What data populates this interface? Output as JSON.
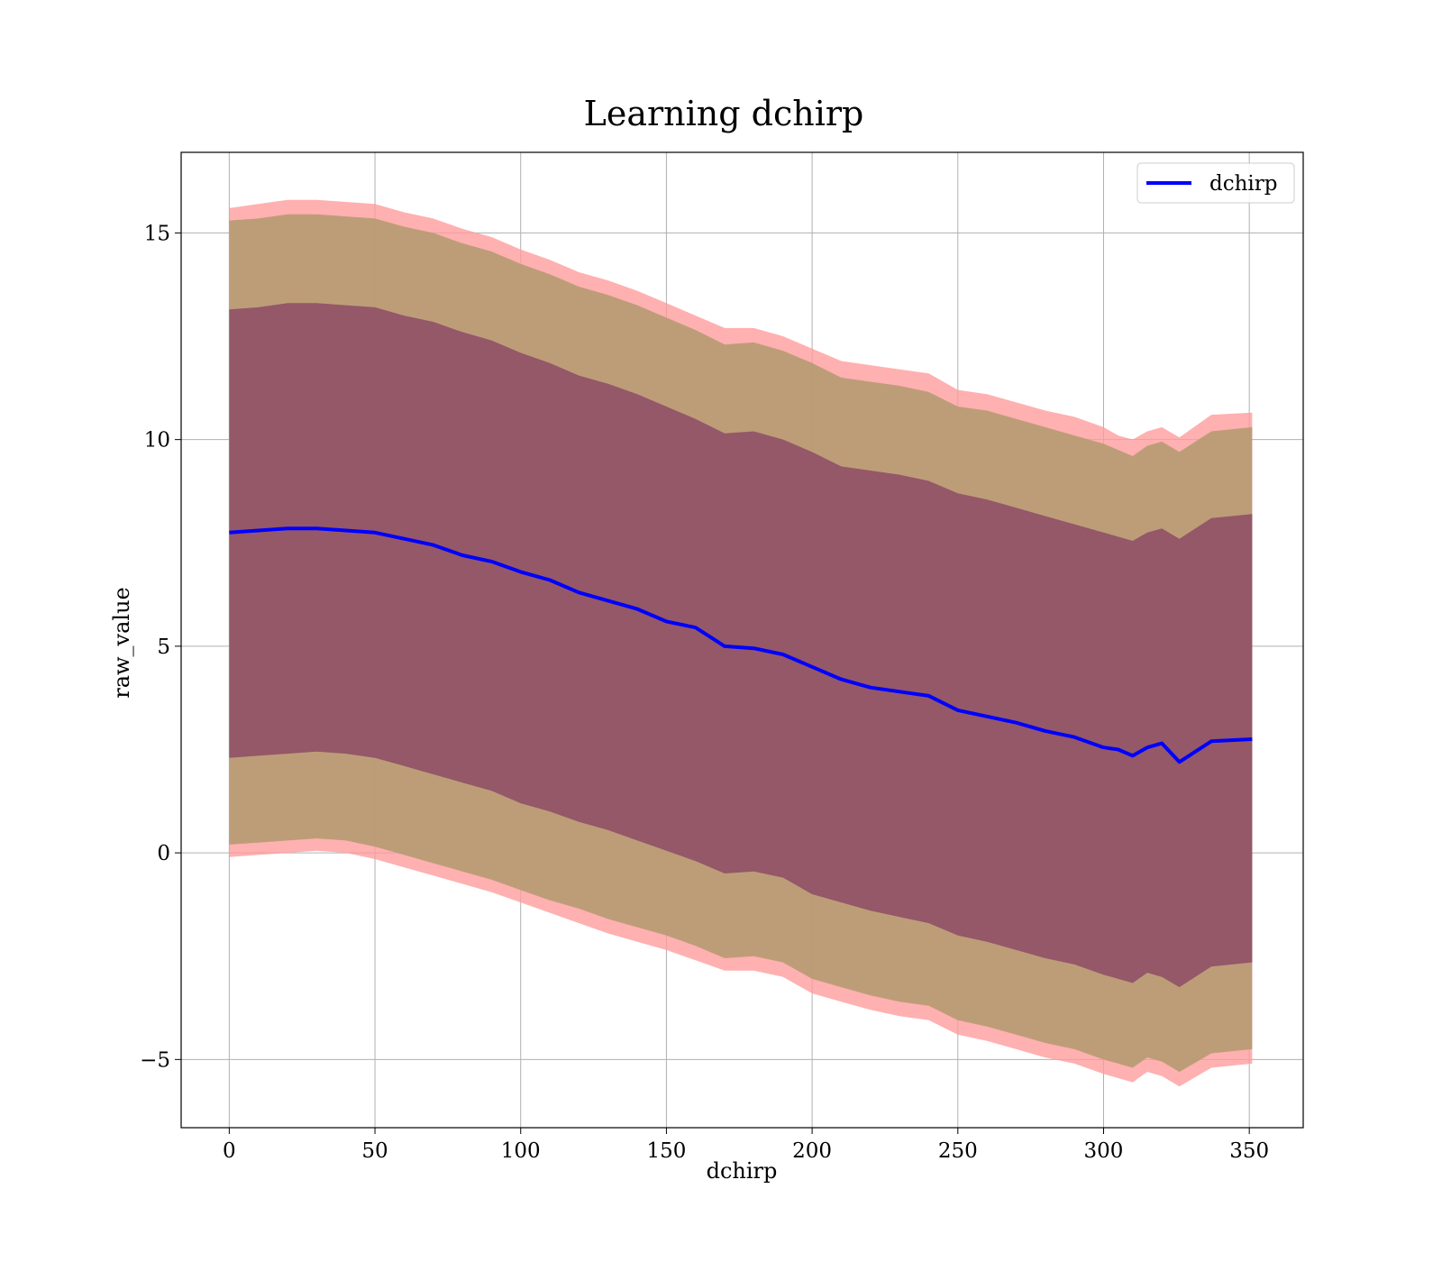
{
  "chart_data": {
    "type": "area",
    "title": "Learning dchirp",
    "xlabel": "dchirp",
    "ylabel": "raw_value",
    "xlim": [
      -16.5,
      368.5
    ],
    "ylim": [
      -6.65,
      16.95
    ],
    "xticks": [
      0,
      50,
      100,
      150,
      200,
      250,
      300,
      350
    ],
    "yticks": [
      -5,
      0,
      5,
      10,
      15
    ],
    "xtick_labels": [
      "0",
      "50",
      "100",
      "150",
      "200",
      "250",
      "300",
      "350"
    ],
    "ytick_labels": [
      "−5",
      "0",
      "5",
      "10",
      "15"
    ],
    "grid": true,
    "legend": {
      "placement": "top-right",
      "entries": [
        "dchirp"
      ]
    },
    "colors": {
      "line": "#0000ff",
      "band_outer": "#ff9a9a",
      "band_middle": "#b79b73",
      "band_inner": "#8e4f66",
      "grid": "#b0b0b0"
    },
    "series": [
      {
        "name": "dchirp",
        "x": [
          0,
          10,
          20,
          30,
          40,
          50,
          60,
          70,
          80,
          90,
          100,
          110,
          120,
          130,
          140,
          150,
          160,
          170,
          180,
          190,
          200,
          210,
          220,
          230,
          240,
          250,
          260,
          270,
          280,
          290,
          300,
          305,
          310,
          315,
          320,
          326,
          337,
          351
        ],
        "y": [
          7.75,
          7.8,
          7.85,
          7.85,
          7.8,
          7.75,
          7.6,
          7.45,
          7.2,
          7.05,
          6.8,
          6.6,
          6.3,
          6.1,
          5.9,
          5.6,
          5.45,
          5.0,
          4.95,
          4.8,
          4.5,
          4.2,
          4.0,
          3.9,
          3.8,
          3.45,
          3.3,
          3.15,
          2.95,
          2.8,
          2.55,
          2.5,
          2.35,
          2.55,
          2.65,
          2.2,
          2.7,
          2.75
        ]
      }
    ],
    "bands": [
      {
        "label": "outer",
        "upper": [
          15.6,
          15.7,
          15.8,
          15.8,
          15.75,
          15.7,
          15.5,
          15.35,
          15.1,
          14.9,
          14.6,
          14.35,
          14.05,
          13.85,
          13.6,
          13.3,
          13.0,
          12.7,
          12.7,
          12.5,
          12.2,
          11.9,
          11.8,
          11.7,
          11.6,
          11.2,
          11.1,
          10.9,
          10.7,
          10.55,
          10.3,
          10.1,
          10.0,
          10.2,
          10.3,
          10.05,
          10.6,
          10.65
        ],
        "lower": [
          -0.1,
          -0.05,
          0.0,
          0.05,
          0.0,
          -0.15,
          -0.35,
          -0.55,
          -0.75,
          -0.95,
          -1.2,
          -1.45,
          -1.7,
          -1.95,
          -2.15,
          -2.35,
          -2.6,
          -2.85,
          -2.85,
          -3.0,
          -3.4,
          -3.6,
          -3.8,
          -3.95,
          -4.05,
          -4.4,
          -4.55,
          -4.75,
          -4.95,
          -5.1,
          -5.35,
          -5.45,
          -5.55,
          -5.3,
          -5.4,
          -5.65,
          -5.2,
          -5.1
        ]
      },
      {
        "label": "middle",
        "upper": [
          15.3,
          15.35,
          15.45,
          15.45,
          15.4,
          15.35,
          15.15,
          15.0,
          14.75,
          14.55,
          14.25,
          14.0,
          13.7,
          13.5,
          13.25,
          12.95,
          12.65,
          12.3,
          12.35,
          12.15,
          11.85,
          11.5,
          11.4,
          11.3,
          11.15,
          10.8,
          10.7,
          10.5,
          10.3,
          10.1,
          9.9,
          9.75,
          9.6,
          9.85,
          9.95,
          9.7,
          10.2,
          10.3
        ],
        "lower": [
          0.2,
          0.25,
          0.3,
          0.35,
          0.3,
          0.15,
          -0.05,
          -0.25,
          -0.45,
          -0.65,
          -0.9,
          -1.15,
          -1.35,
          -1.6,
          -1.8,
          -2.0,
          -2.25,
          -2.55,
          -2.5,
          -2.65,
          -3.05,
          -3.25,
          -3.45,
          -3.6,
          -3.7,
          -4.05,
          -4.2,
          -4.4,
          -4.6,
          -4.75,
          -5.0,
          -5.1,
          -5.2,
          -4.95,
          -5.05,
          -5.3,
          -4.85,
          -4.75
        ]
      },
      {
        "label": "inner",
        "upper": [
          13.15,
          13.2,
          13.3,
          13.3,
          13.25,
          13.2,
          13.0,
          12.85,
          12.6,
          12.4,
          12.1,
          11.85,
          11.55,
          11.35,
          11.1,
          10.8,
          10.5,
          10.15,
          10.2,
          10.0,
          9.7,
          9.35,
          9.25,
          9.15,
          9.0,
          8.7,
          8.55,
          8.35,
          8.15,
          7.95,
          7.75,
          7.65,
          7.55,
          7.75,
          7.85,
          7.6,
          8.1,
          8.2
        ],
        "lower": [
          2.3,
          2.35,
          2.4,
          2.45,
          2.4,
          2.3,
          2.1,
          1.9,
          1.7,
          1.5,
          1.2,
          1.0,
          0.75,
          0.55,
          0.3,
          0.05,
          -0.2,
          -0.5,
          -0.45,
          -0.6,
          -1.0,
          -1.2,
          -1.4,
          -1.55,
          -1.7,
          -2.0,
          -2.15,
          -2.35,
          -2.55,
          -2.7,
          -2.95,
          -3.05,
          -3.15,
          -2.9,
          -3.0,
          -3.25,
          -2.75,
          -2.65
        ]
      }
    ]
  }
}
